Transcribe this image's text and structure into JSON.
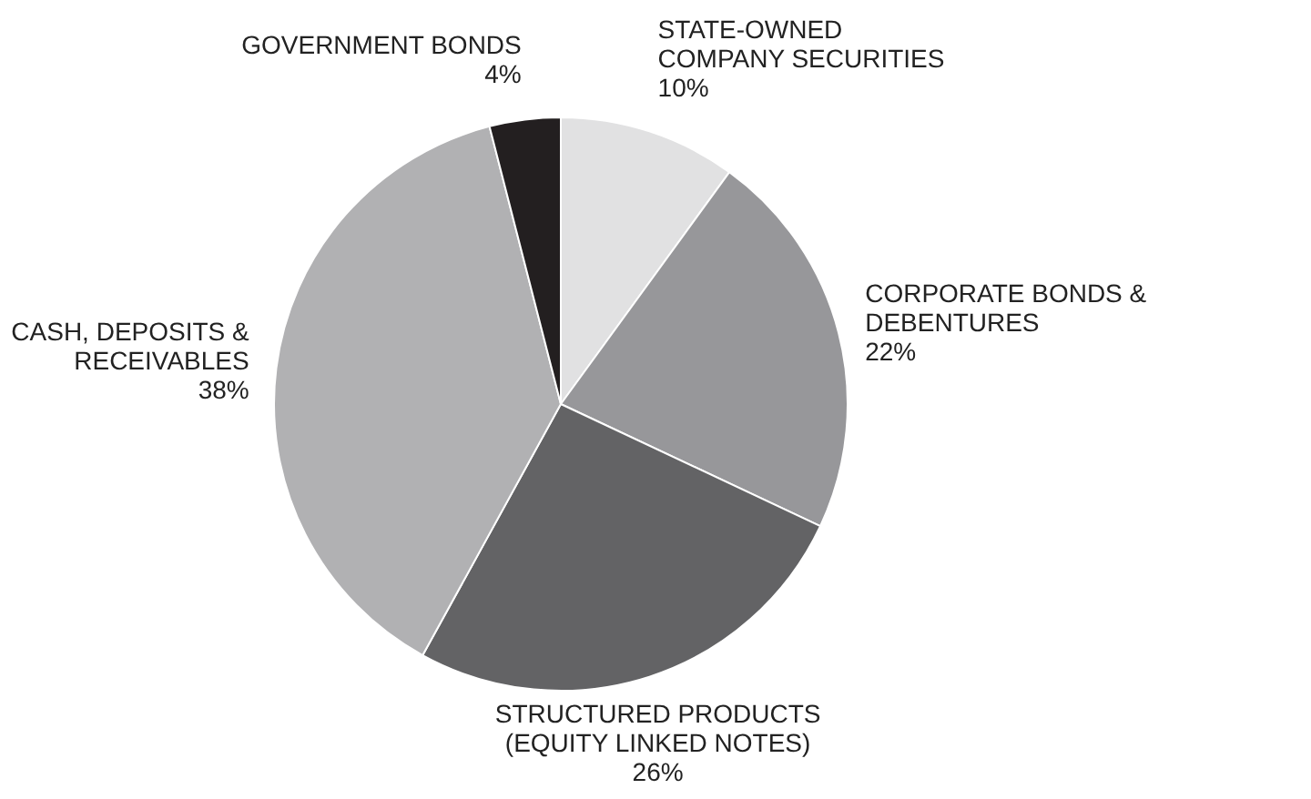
{
  "chart_data": {
    "type": "pie",
    "categories": [
      "STATE-OWNED\nCOMPANY SECURITIES",
      "CORPORATE BONDS &\nDEBENTURES",
      "STRUCTURED PRODUCTS\n(EQUITY LINKED NOTES)",
      "CASH, DEPOSITS &\nRECEIVABLES",
      "GOVERNMENT BONDS"
    ],
    "values": [
      10,
      22,
      26,
      38,
      4
    ],
    "value_labels": [
      "10%",
      "22%",
      "26%",
      "38%",
      "4%"
    ],
    "colors": [
      "#e1e1e2",
      "#97979a",
      "#636365",
      "#b1b1b3",
      "#231f20"
    ],
    "legend": false
  }
}
